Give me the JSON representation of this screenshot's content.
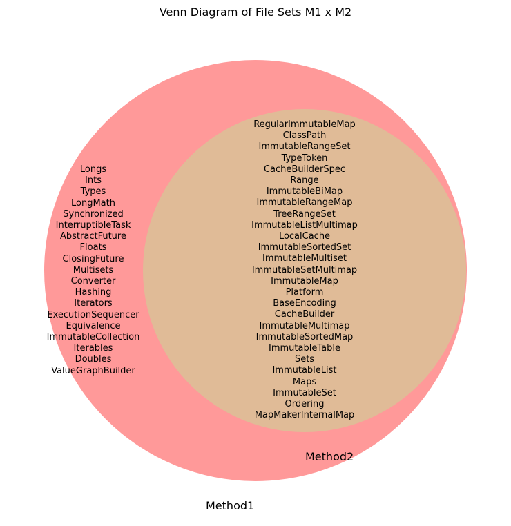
{
  "title": "Venn Diagram of File Sets M1 x M2",
  "colors": {
    "method1": "#ff9999",
    "overlap": "#e0bb97"
  },
  "sets": {
    "method1_label": "Method1",
    "method2_label": "Method2"
  },
  "only_method1": [
    "Longs",
    "Ints",
    "Types",
    "LongMath",
    "Synchronized",
    "InterruptibleTask",
    "AbstractFuture",
    "Floats",
    "ClosingFuture",
    "Multisets",
    "Converter",
    "Hashing",
    "Iterators",
    "ExecutionSequencer",
    "Equivalence",
    "ImmutableCollection",
    "Iterables",
    "Doubles",
    "ValueGraphBuilder"
  ],
  "intersection": [
    "RegularImmutableMap",
    "ClassPath",
    "ImmutableRangeSet",
    "TypeToken",
    "CacheBuilderSpec",
    "Range",
    "ImmutableBiMap",
    "ImmutableRangeMap",
    "TreeRangeSet",
    "ImmutableListMultimap",
    "LocalCache",
    "ImmutableSortedSet",
    "ImmutableMultiset",
    "ImmutableSetMultimap",
    "ImmutableMap",
    "Platform",
    "BaseEncoding",
    "CacheBuilder",
    "ImmutableMultimap",
    "ImmutableSortedMap",
    "ImmutableTable",
    "Sets",
    "ImmutableList",
    "Maps",
    "ImmutableSet",
    "Ordering",
    "MapMakerInternalMap"
  ]
}
